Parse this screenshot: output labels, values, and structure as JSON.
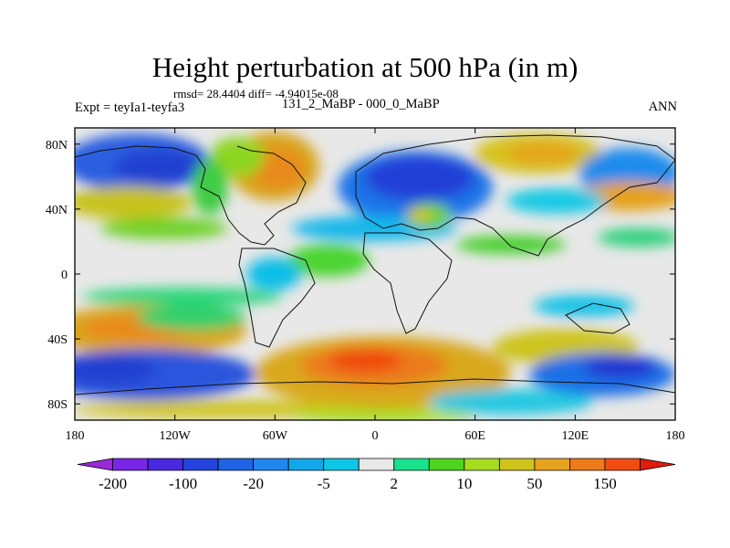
{
  "chart_data": {
    "type": "heatmap",
    "title": "Height perturbation at 500 hPa (in m)",
    "stats_line": "rmsd= 28.4404 diff= -4.94015e-08",
    "left_label": "Expt = teyIa1-teyfa3",
    "center_label": "131_2_MaBP - 000_0_MaBP",
    "right_label": "ANN",
    "x_ticks": [
      "180",
      "120W",
      "60W",
      "0",
      "60E",
      "120E",
      "180"
    ],
    "y_ticks": [
      "80N",
      "40N",
      "0",
      "40S",
      "80S"
    ],
    "x_range": [
      -180,
      180
    ],
    "y_range": [
      -90,
      90
    ],
    "colorbar": {
      "colors": [
        "#9a28d9",
        "#7a26e8",
        "#4a28e0",
        "#2244dd",
        "#1f63e6",
        "#1f86ee",
        "#11a7ea",
        "#0ec6e6",
        "#e8e8e8",
        "#18e28c",
        "#4cd41e",
        "#a6dc20",
        "#cfc41c",
        "#e6a21c",
        "#ee7a1a",
        "#f24c12",
        "#e01c0c"
      ],
      "labels": [
        "-200",
        "-100",
        "-20",
        "-5",
        "2",
        "10",
        "50",
        "150"
      ]
    }
  }
}
